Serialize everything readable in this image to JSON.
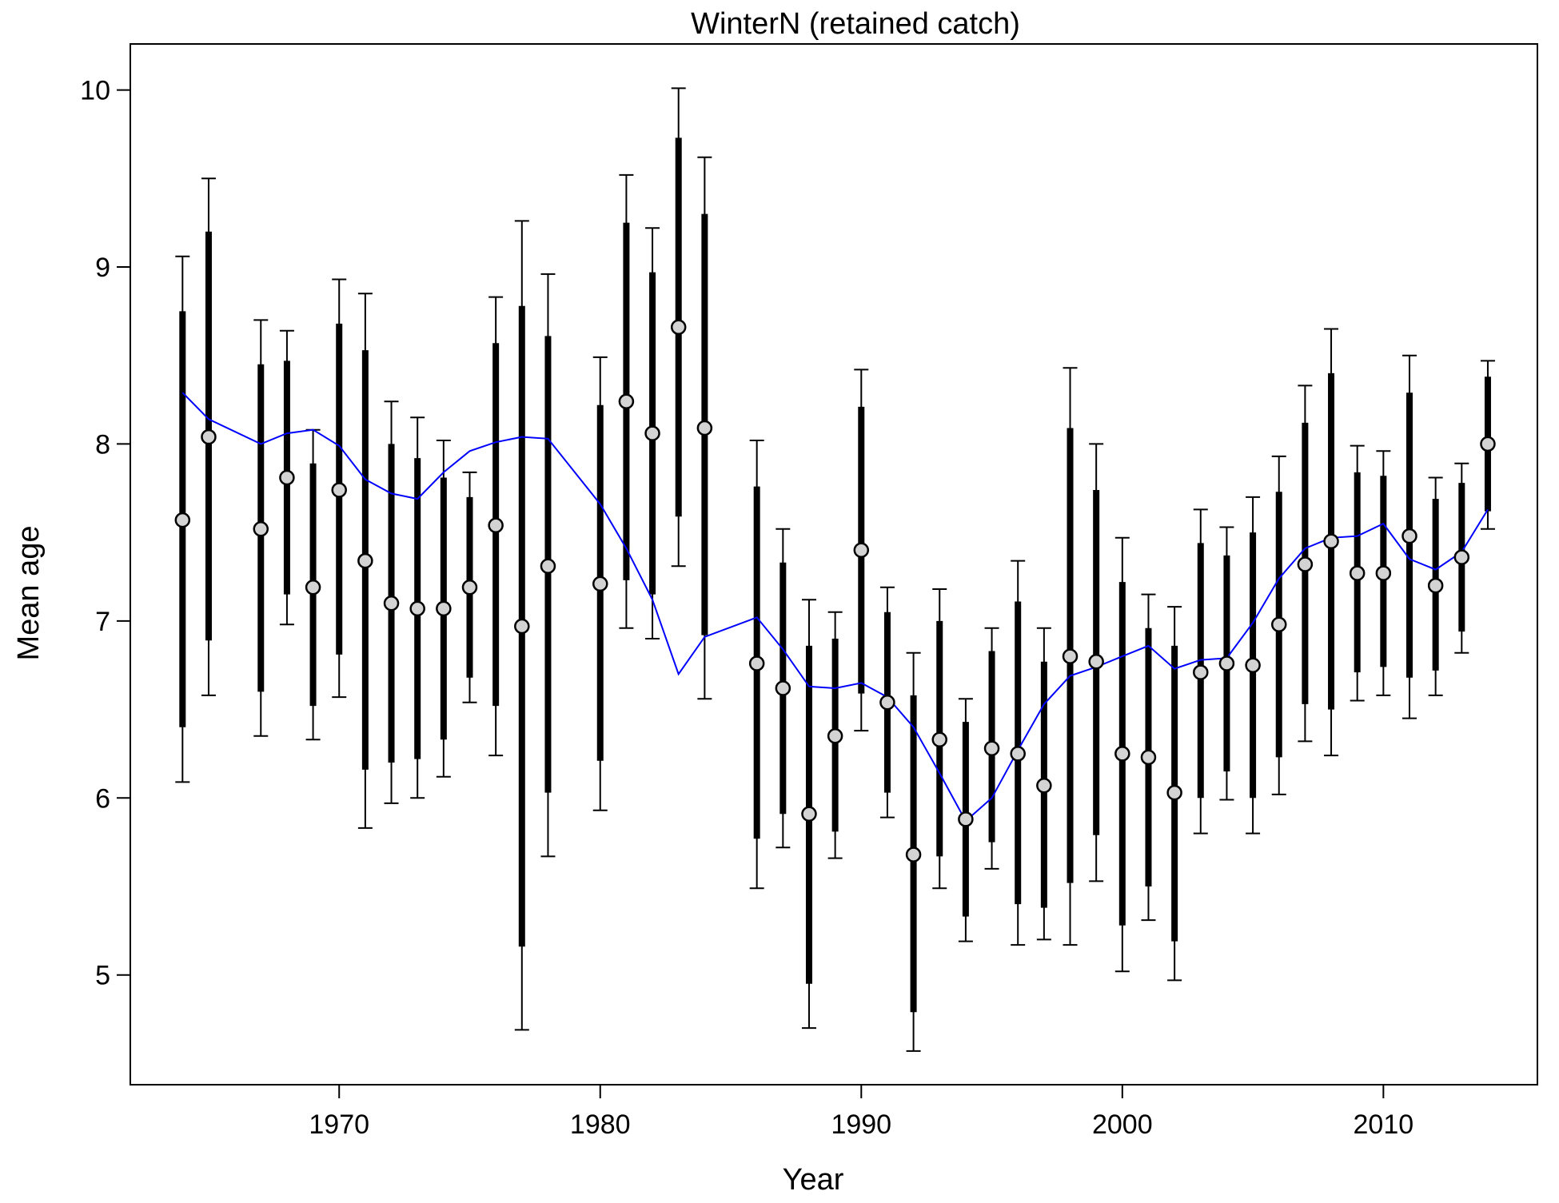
{
  "chart_data": {
    "type": "scatter",
    "title": "WinterN (retained catch)",
    "xlabel": "Year",
    "ylabel": "Mean age",
    "xlim": [
      1962.0,
      2015.9
    ],
    "ylim": [
      4.38,
      10.26
    ],
    "xticks": [
      1970,
      1980,
      1990,
      2000,
      2010
    ],
    "yticks": [
      5,
      6,
      7,
      8,
      9,
      10
    ],
    "grid": false,
    "colors": {
      "points": "#d3d3d3",
      "bars": "#000000",
      "line": "#0000ff"
    },
    "series": [
      {
        "x": [
          1964,
          1965,
          1967,
          1968,
          1969,
          1970,
          1971,
          1972,
          1973,
          1974,
          1975,
          1976,
          1977,
          1978,
          1980,
          1981,
          1982,
          1983,
          1984,
          1986,
          1987,
          1988,
          1989,
          1990,
          1991,
          1992,
          1993,
          1994,
          1995,
          1996,
          1997,
          1998,
          1999,
          2000,
          2001,
          2002,
          2003,
          2004,
          2005,
          2006,
          2007,
          2008,
          2009,
          2010,
          2011,
          2012,
          2013,
          2014
        ],
        "mean": [
          7.57,
          8.04,
          7.52,
          7.81,
          7.19,
          7.74,
          7.34,
          7.1,
          7.07,
          7.07,
          7.19,
          7.54,
          6.97,
          7.31,
          7.21,
          8.24,
          8.06,
          8.66,
          8.09,
          6.76,
          6.62,
          5.91,
          6.35,
          7.4,
          6.54,
          5.68,
          6.33,
          5.88,
          6.28,
          6.25,
          6.07,
          6.8,
          6.77,
          6.25,
          6.23,
          6.03,
          6.71,
          6.76,
          6.75,
          6.98,
          7.32,
          7.45,
          7.27,
          7.27,
          7.48,
          7.2,
          7.36,
          8.0
        ],
        "inner_low": [
          6.4,
          6.89,
          6.6,
          7.15,
          6.52,
          6.81,
          6.16,
          6.2,
          6.22,
          6.33,
          6.68,
          6.52,
          5.16,
          6.03,
          6.21,
          7.23,
          7.15,
          7.59,
          6.92,
          5.77,
          5.91,
          4.95,
          5.81,
          6.59,
          6.03,
          4.79,
          5.67,
          5.33,
          5.75,
          5.4,
          5.38,
          5.52,
          5.79,
          5.28,
          5.5,
          5.19,
          6.0,
          6.15,
          6.0,
          6.23,
          6.53,
          6.5,
          6.71,
          6.74,
          6.68,
          6.72,
          6.94,
          7.62
        ],
        "inner_high": [
          8.75,
          9.2,
          8.45,
          8.47,
          7.89,
          8.68,
          8.53,
          8.0,
          7.92,
          7.81,
          7.7,
          8.57,
          8.78,
          8.61,
          8.22,
          9.25,
          8.97,
          9.73,
          9.3,
          7.76,
          7.33,
          6.86,
          6.9,
          8.21,
          7.05,
          6.58,
          7.0,
          6.43,
          6.83,
          7.11,
          6.77,
          8.09,
          7.74,
          7.22,
          6.96,
          6.86,
          7.44,
          7.37,
          7.5,
          7.73,
          8.12,
          8.4,
          7.84,
          7.82,
          8.29,
          7.69,
          7.78,
          8.38
        ],
        "outer_low": [
          6.09,
          6.58,
          6.35,
          6.98,
          6.33,
          6.57,
          5.83,
          5.97,
          6.0,
          6.12,
          6.54,
          6.24,
          4.69,
          5.67,
          5.93,
          6.96,
          6.9,
          7.31,
          6.56,
          5.49,
          5.72,
          4.7,
          5.66,
          6.38,
          5.89,
          4.57,
          5.49,
          5.19,
          5.6,
          5.17,
          5.2,
          5.17,
          5.53,
          5.02,
          5.31,
          4.97,
          5.8,
          5.99,
          5.8,
          6.02,
          6.32,
          6.24,
          6.55,
          6.58,
          6.45,
          6.58,
          6.82,
          7.52
        ],
        "outer_high": [
          9.06,
          9.5,
          8.7,
          8.64,
          8.08,
          8.93,
          8.85,
          8.24,
          8.15,
          8.02,
          7.84,
          8.83,
          9.26,
          8.96,
          8.49,
          9.52,
          9.22,
          10.01,
          9.62,
          8.02,
          7.52,
          7.12,
          7.05,
          8.42,
          7.19,
          6.82,
          7.18,
          6.56,
          6.96,
          7.34,
          6.96,
          8.43,
          8.0,
          7.47,
          7.15,
          7.08,
          7.63,
          7.53,
          7.7,
          7.93,
          8.33,
          8.65,
          7.99,
          7.96,
          8.5,
          7.81,
          7.89,
          8.47
        ]
      },
      {
        "x": [
          1964,
          1965,
          1967,
          1968,
          1969,
          1970,
          1971,
          1972,
          1973,
          1974,
          1975,
          1976,
          1977,
          1978,
          1980,
          1981,
          1982,
          1983,
          1984,
          1986,
          1987,
          1988,
          1989,
          1990,
          1991,
          1992,
          1993,
          1994,
          1995,
          1996,
          1997,
          1998,
          1999,
          2000,
          2001,
          2002,
          2003,
          2004,
          2005,
          2006,
          2007,
          2008,
          2009,
          2010,
          2011,
          2012,
          2013,
          2014
        ],
        "values": [
          8.29,
          8.14,
          8.0,
          8.06,
          8.08,
          7.99,
          7.8,
          7.72,
          7.69,
          7.84,
          7.96,
          8.01,
          8.04,
          8.03,
          7.66,
          7.41,
          7.12,
          6.7,
          6.91,
          7.02,
          6.84,
          6.63,
          6.62,
          6.65,
          6.57,
          6.4,
          6.14,
          5.87,
          6.0,
          6.27,
          6.53,
          6.69,
          6.74,
          6.8,
          6.86,
          6.73,
          6.78,
          6.79,
          6.99,
          7.24,
          7.41,
          7.47,
          7.48,
          7.55,
          7.35,
          7.29,
          7.39,
          7.63
        ]
      }
    ]
  }
}
